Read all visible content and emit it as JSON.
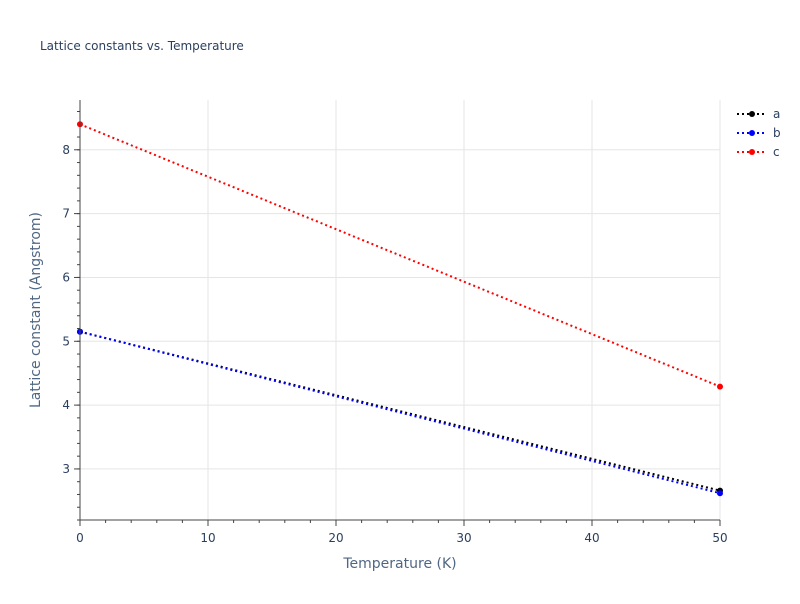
{
  "chart_data": {
    "type": "line",
    "title": "Lattice constants vs. Temperature",
    "xlabel": "Temperature (K)",
    "ylabel": "Lattice constant (Angstrom)",
    "xlim": [
      0,
      50
    ],
    "ylim": [
      2.2,
      8.78
    ],
    "x_ticks": [
      0,
      10,
      20,
      30,
      40,
      50
    ],
    "y_ticks": [
      3,
      4,
      5,
      6,
      7,
      8
    ],
    "x_minor_step": 2,
    "y_minor_step": 0.2,
    "grid": true,
    "legend_position": "top-right",
    "line_style": "dotted",
    "markers": true,
    "series": [
      {
        "name": "a",
        "color": "#000000",
        "x": [
          0,
          50
        ],
        "y": [
          5.15,
          2.66
        ]
      },
      {
        "name": "b",
        "color": "#0000ff",
        "x": [
          0,
          50
        ],
        "y": [
          5.15,
          2.62
        ]
      },
      {
        "name": "c",
        "color": "#ff0000",
        "x": [
          0,
          50
        ],
        "y": [
          8.4,
          4.29
        ]
      }
    ]
  }
}
